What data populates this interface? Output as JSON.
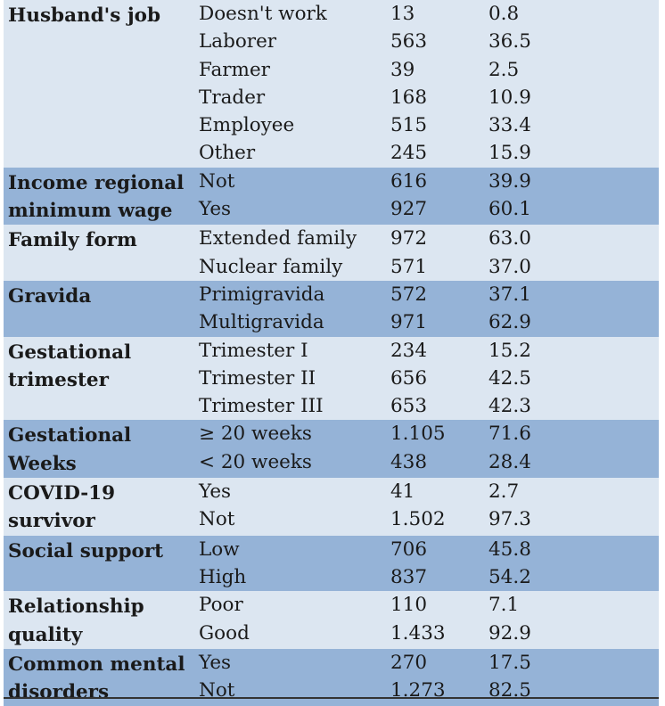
{
  "groups": [
    {
      "variable": "Husband's job",
      "shade": "light",
      "rows": [
        {
          "category": "Doesn't work",
          "n": "13",
          "pct": "0.8"
        },
        {
          "category": "Laborer",
          "n": "563",
          "pct": "36.5"
        },
        {
          "category": "Farmer",
          "n": "39",
          "pct": "2.5"
        },
        {
          "category": "Trader",
          "n": "168",
          "pct": "10.9"
        },
        {
          "category": "Employee",
          "n": "515",
          "pct": "33.4"
        },
        {
          "category": "Other",
          "n": "245",
          "pct": "15.9"
        }
      ]
    },
    {
      "variable": "Income regional\nminimum wage",
      "shade": "dark",
      "rows": [
        {
          "category": "Not",
          "n": "616",
          "pct": "39.9"
        },
        {
          "category": "Yes",
          "n": "927",
          "pct": "60.1"
        }
      ]
    },
    {
      "variable": "Family form",
      "shade": "light",
      "rows": [
        {
          "category": "Extended family",
          "n": "972",
          "pct": "63.0"
        },
        {
          "category": "Nuclear family",
          "n": "571",
          "pct": "37.0"
        }
      ]
    },
    {
      "variable": "Gravida",
      "shade": "dark",
      "rows": [
        {
          "category": "Primigravida",
          "n": "572",
          "pct": "37.1"
        },
        {
          "category": "Multigravida",
          "n": "971",
          "pct": "62.9"
        }
      ]
    },
    {
      "variable": "Gestational\ntrimester",
      "shade": "light",
      "rows": [
        {
          "category": "Trimester I",
          "n": "234",
          "pct": "15.2"
        },
        {
          "category": "Trimester II",
          "n": "656",
          "pct": "42.5"
        },
        {
          "category": "Trimester III",
          "n": "653",
          "pct": "42.3"
        }
      ]
    },
    {
      "variable": "Gestational\nWeeks",
      "shade": "dark",
      "rows": [
        {
          "category": "≥ 20 weeks",
          "n": "1.105",
          "pct": "71.6"
        },
        {
          "category": "< 20 weeks",
          "n": "438",
          "pct": "28.4"
        }
      ]
    },
    {
      "variable": "COVID-19\nsurvivor",
      "shade": "light",
      "rows": [
        {
          "category": "Yes",
          "n": "41",
          "pct": "2.7"
        },
        {
          "category": "Not",
          "n": "1.502",
          "pct": "97.3"
        }
      ]
    },
    {
      "variable": "Social support",
      "shade": "dark",
      "rows": [
        {
          "category": "Low",
          "n": "706",
          "pct": "45.8"
        },
        {
          "category": "High",
          "n": "837",
          "pct": "54.2"
        }
      ]
    },
    {
      "variable": "Relationship\nquality",
      "shade": "light",
      "rows": [
        {
          "category": "Poor",
          "n": "110",
          "pct": "7.1"
        },
        {
          "category": "Good",
          "n": "1.433",
          "pct": "92.9"
        }
      ]
    },
    {
      "variable": "Common mental\ndisorders",
      "shade": "dark",
      "rows": [
        {
          "category": "Yes",
          "n": "270",
          "pct": "17.5"
        },
        {
          "category": "Not",
          "n": "1.273",
          "pct": "82.5"
        }
      ]
    }
  ]
}
